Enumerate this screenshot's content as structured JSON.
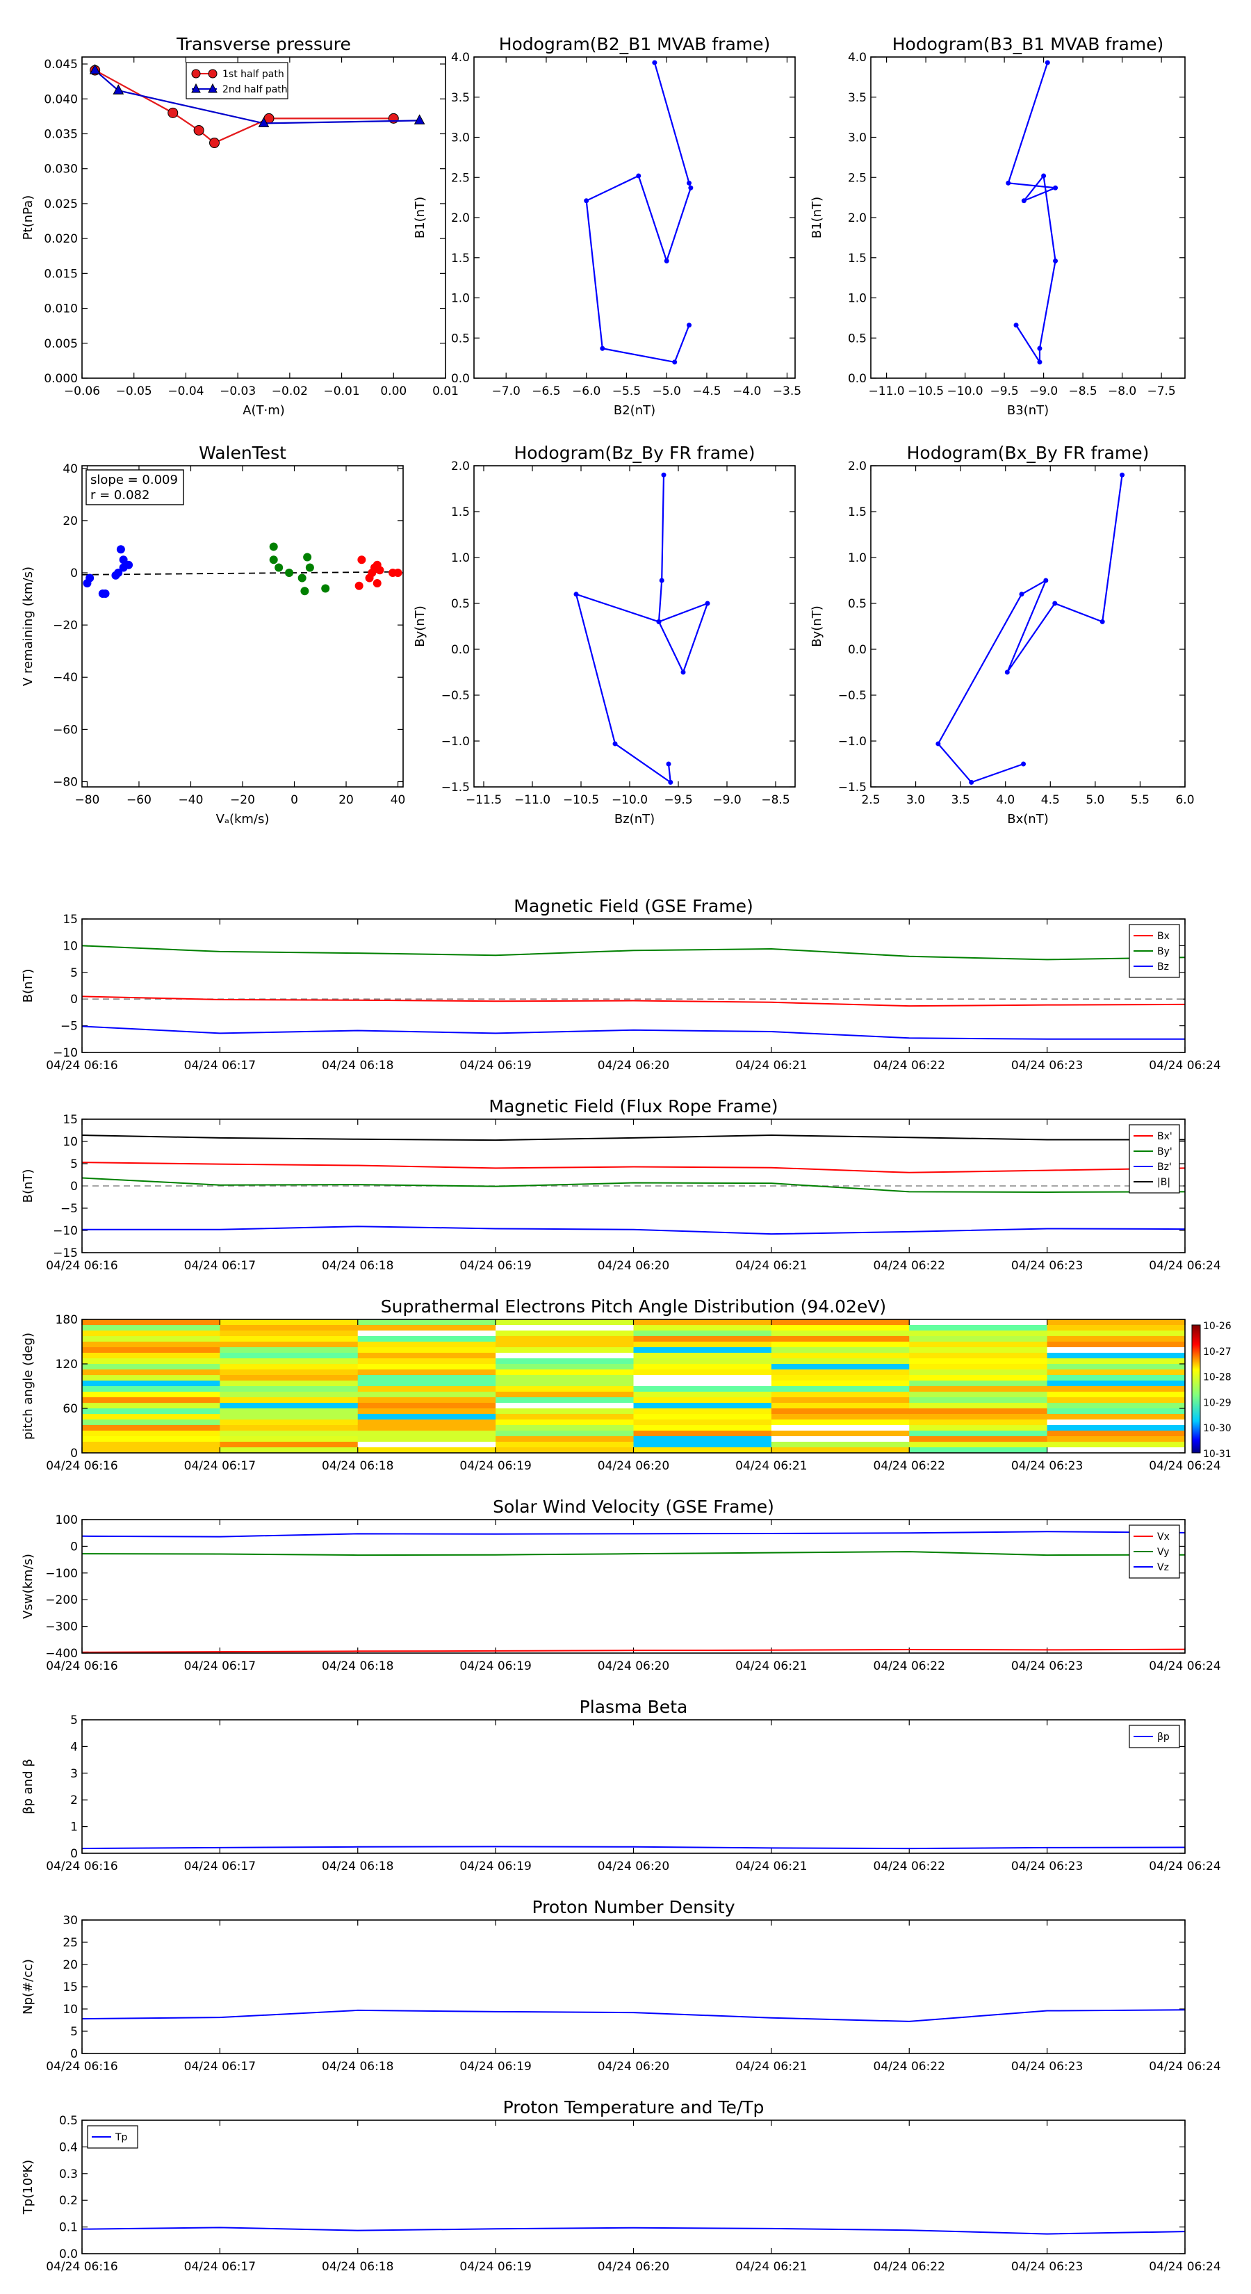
{
  "chart_data": [
    {
      "id": "transverse_pressure",
      "type": "line",
      "title": "Transverse pressure",
      "xlabel": "A(T·m)",
      "ylabel": "Pt(nPa)",
      "xlim": [
        -0.06,
        0.01
      ],
      "ylim": [
        0,
        0.046
      ],
      "xticks": [
        "−0.06",
        "−0.05",
        "−0.04",
        "−0.03",
        "−0.02",
        "−0.01",
        "0.00",
        "0.01"
      ],
      "yticks": [
        "0.000",
        "0.005",
        "0.010",
        "0.015",
        "0.020",
        "0.025",
        "0.030",
        "0.035",
        "0.040",
        "0.045"
      ],
      "legend": "top-center",
      "series": [
        {
          "name": "1st half path",
          "color": "#e41a1c",
          "marker": "circle",
          "x": [
            -0.0575,
            -0.0425,
            -0.0375,
            -0.0345,
            -0.024,
            0.0
          ],
          "y": [
            0.0441,
            0.038,
            0.0355,
            0.0337,
            0.0372,
            0.0372
          ]
        },
        {
          "name": "2nd half path",
          "color": "#0000cc",
          "marker": "triangle",
          "x": [
            -0.0575,
            -0.053,
            -0.025,
            0.005
          ],
          "y": [
            0.0441,
            0.0412,
            0.0365,
            0.0369
          ]
        }
      ]
    },
    {
      "id": "hodo_b2b1",
      "type": "line",
      "title": "Hodogram(B2_B1 MVAB frame)",
      "xlabel": "B2(nT)",
      "ylabel": "B1(nT)",
      "xlim": [
        -7.4,
        -3.4
      ],
      "ylim": [
        0,
        4.0
      ],
      "xticks": [
        "−7.0",
        "−6.5",
        "−6.0",
        "−5.5",
        "−5.0",
        "−4.5",
        "−4.0",
        "−3.5"
      ],
      "yticks": [
        "0.0",
        "0.5",
        "1.0",
        "1.5",
        "2.0",
        "2.5",
        "3.0",
        "3.5",
        "4.0"
      ],
      "series": [
        {
          "color": "#0000ff",
          "x": [
            -5.15,
            -4.72,
            -4.7,
            -5.0,
            -5.35,
            -6.0,
            -5.8,
            -4.9,
            -4.72
          ],
          "y": [
            3.93,
            2.43,
            2.37,
            1.46,
            2.52,
            2.21,
            0.37,
            0.2,
            0.66
          ]
        }
      ]
    },
    {
      "id": "hodo_b3b1",
      "type": "line",
      "title": "Hodogram(B3_B1 MVAB frame)",
      "xlabel": "B3(nT)",
      "ylabel": "B1(nT)",
      "xlim": [
        -11.2,
        -7.2
      ],
      "ylim": [
        0,
        4.0
      ],
      "xticks": [
        "−11.0",
        "−10.5",
        "−10.0",
        "−9.5",
        "−9.0",
        "−8.5",
        "−8.0",
        "−7.5"
      ],
      "yticks": [
        "0.0",
        "0.5",
        "1.0",
        "1.5",
        "2.0",
        "2.5",
        "3.0",
        "3.5",
        "4.0"
      ],
      "series": [
        {
          "color": "#0000ff",
          "x": [
            -8.95,
            -9.45,
            -8.85,
            -9.25,
            -9.0,
            -8.85,
            -9.05,
            -9.05,
            -9.35
          ],
          "y": [
            3.93,
            2.43,
            2.37,
            2.21,
            2.52,
            1.46,
            0.37,
            0.2,
            0.66
          ]
        }
      ]
    },
    {
      "id": "walen",
      "type": "scatter",
      "title": "WalenTest",
      "xlabel": "Vₐ(km/s)",
      "ylabel": "V remaining (km/s)",
      "xlim": [
        -82,
        42
      ],
      "ylim": [
        -82,
        41
      ],
      "xticks": [
        "−80",
        "−60",
        "−40",
        "−20",
        "0",
        "20",
        "40"
      ],
      "yticks": [
        "−80",
        "−60",
        "−40",
        "−20",
        "0",
        "20",
        "40"
      ],
      "annotation": [
        "slope = 0.009",
        "r = 0.082"
      ],
      "fit_line": {
        "slope": 0.009,
        "intercept": 0.0
      },
      "series": [
        {
          "color": "#0000ff",
          "x": [
            -80,
            -79,
            -74,
            -73,
            -68,
            -67,
            -66,
            -66,
            -64,
            -69
          ],
          "y": [
            -4,
            -2,
            -8,
            -8,
            0,
            9,
            5,
            2,
            3,
            -1
          ]
        },
        {
          "color": "#008000",
          "x": [
            -8,
            -8,
            -6,
            -2,
            4,
            5,
            3,
            6,
            12
          ],
          "y": [
            5,
            10,
            2,
            0,
            -7,
            6,
            -2,
            2,
            -6
          ]
        },
        {
          "color": "#ff0000",
          "x": [
            26,
            25,
            29,
            30,
            31,
            32,
            32,
            33,
            38,
            40
          ],
          "y": [
            5,
            -5,
            -2,
            0,
            2,
            3,
            -4,
            1,
            0,
            0
          ]
        }
      ]
    },
    {
      "id": "hodo_bzby",
      "type": "line",
      "title": "Hodogram(Bz_By FR frame)",
      "xlabel": "Bz(nT)",
      "ylabel": "By(nT)",
      "xlim": [
        -11.6,
        -8.3
      ],
      "ylim": [
        -1.5,
        2.0
      ],
      "xticks": [
        "−11.5",
        "−11.0",
        "−10.5",
        "−10.0",
        "−9.5",
        "−9.0",
        "−8.5"
      ],
      "yticks": [
        "−1.5",
        "−1.0",
        "−0.5",
        "0.0",
        "0.5",
        "1.0",
        "1.5",
        "2.0"
      ],
      "series": [
        {
          "color": "#0000ff",
          "x": [
            -9.65,
            -9.67,
            -9.7,
            -9.45,
            -9.2,
            -9.7,
            -10.55,
            -10.15,
            -9.58,
            -9.6
          ],
          "y": [
            1.9,
            0.75,
            0.3,
            -0.25,
            0.5,
            0.3,
            0.6,
            -1.03,
            -1.45,
            -1.25
          ]
        }
      ]
    },
    {
      "id": "hodo_bxby",
      "type": "line",
      "title": "Hodogram(Bx_By FR frame)",
      "xlabel": "Bx(nT)",
      "ylabel": "By(nT)",
      "xlim": [
        2.5,
        6.0
      ],
      "ylim": [
        -1.5,
        2.0
      ],
      "xticks": [
        "2.5",
        "3.0",
        "3.5",
        "4.0",
        "4.5",
        "5.0",
        "5.5",
        "6.0"
      ],
      "yticks": [
        "−1.5",
        "−1.0",
        "−0.5",
        "0.0",
        "0.5",
        "1.0",
        "1.5",
        "2.0"
      ],
      "series": [
        {
          "color": "#0000ff",
          "x": [
            5.3,
            5.08,
            4.55,
            4.02,
            4.45,
            4.18,
            3.25,
            3.62,
            4.2
          ],
          "y": [
            1.9,
            0.3,
            0.5,
            -0.25,
            0.75,
            0.6,
            -1.03,
            -1.45,
            -1.25
          ]
        }
      ]
    },
    {
      "id": "mag_gse",
      "type": "line",
      "title": "Magnetic Field (GSE Frame)",
      "xlabel": "",
      "ylabel": "B(nT)",
      "ylim": [
        -10,
        15
      ],
      "yticks": [
        "−10",
        "−5",
        "0",
        "5",
        "10",
        "15"
      ],
      "zero_line": true,
      "legend": "top-right",
      "series": [
        {
          "name": "Bx",
          "color": "#ff0000",
          "values": [
            0.5,
            -0.1,
            -0.2,
            -0.4,
            -0.3,
            -0.6,
            -1.3,
            -1.1,
            -1.0
          ]
        },
        {
          "name": "By",
          "color": "#008000",
          "values": [
            10.0,
            8.9,
            8.6,
            8.2,
            9.1,
            9.4,
            8.0,
            7.4,
            7.8
          ]
        },
        {
          "name": "Bz",
          "color": "#0000ff",
          "values": [
            -5.1,
            -6.4,
            -5.9,
            -6.4,
            -5.8,
            -6.1,
            -7.3,
            -7.5,
            -7.5
          ]
        }
      ]
    },
    {
      "id": "mag_fr",
      "type": "line",
      "title": "Magnetic Field (Flux Rope Frame)",
      "xlabel": "",
      "ylabel": "B(nT)",
      "ylim": [
        -15,
        15
      ],
      "yticks": [
        "−15",
        "−10",
        "−5",
        "0",
        "5",
        "10",
        "15"
      ],
      "zero_line": true,
      "legend": "top-right",
      "series": [
        {
          "name": "Bx'",
          "color": "#ff0000",
          "values": [
            5.3,
            4.9,
            4.6,
            4.0,
            4.3,
            4.1,
            3.0,
            3.5,
            4.0
          ]
        },
        {
          "name": "By'",
          "color": "#008000",
          "values": [
            1.8,
            0.2,
            0.3,
            -0.1,
            0.7,
            0.6,
            -1.3,
            -1.4,
            -1.3
          ]
        },
        {
          "name": "Bz'",
          "color": "#0000ff",
          "values": [
            -9.8,
            -9.8,
            -9.1,
            -9.6,
            -9.8,
            -10.8,
            -10.3,
            -9.6,
            -9.7
          ]
        },
        {
          "name": "|B|",
          "color": "#000000",
          "values": [
            11.4,
            10.8,
            10.5,
            10.3,
            10.8,
            11.4,
            10.9,
            10.4,
            10.4
          ]
        }
      ]
    },
    {
      "id": "pad",
      "type": "heatmap",
      "title": "Suprathermal Electrons Pitch Angle Distribution (94.02eV)",
      "xlabel": "",
      "ylabel": "pitch angle (deg)",
      "ylim": [
        0,
        180
      ],
      "yticks": [
        "0",
        "60",
        "120",
        "180"
      ],
      "colorbar_ticks": [
        "10-26",
        "10-27",
        "10-28",
        "10-29",
        "10-30",
        "10-31"
      ]
    },
    {
      "id": "vsw",
      "type": "line",
      "title": "Solar Wind Velocity (GSE Frame)",
      "xlabel": "",
      "ylabel": "Vsw(km/s)",
      "ylim": [
        -400,
        100
      ],
      "yticks": [
        "−400",
        "−300",
        "−200",
        "−100",
        "0",
        "100"
      ],
      "legend": "top-right",
      "series": [
        {
          "name": "Vx",
          "color": "#ff0000",
          "values": [
            -397,
            -395,
            -393,
            -392,
            -390,
            -389,
            -387,
            -388,
            -386
          ]
        },
        {
          "name": "Vy",
          "color": "#008000",
          "values": [
            -28,
            -29,
            -33,
            -32,
            -28,
            -24,
            -20,
            -33,
            -32
          ]
        },
        {
          "name": "Vz",
          "color": "#0000ff",
          "values": [
            38,
            36,
            47,
            46,
            47,
            48,
            50,
            55,
            51
          ]
        }
      ]
    },
    {
      "id": "beta",
      "type": "line",
      "title": "Plasma Beta",
      "xlabel": "",
      "ylabel": "βp and β",
      "ylim": [
        0,
        5
      ],
      "yticks": [
        "0",
        "1",
        "2",
        "3",
        "4",
        "5"
      ],
      "legend": "top-right",
      "series": [
        {
          "name": "βp",
          "color": "#0000ff",
          "values": [
            0.18,
            0.21,
            0.24,
            0.25,
            0.24,
            0.2,
            0.18,
            0.21,
            0.22
          ]
        }
      ]
    },
    {
      "id": "np",
      "type": "line",
      "title": "Proton Number Density",
      "xlabel": "",
      "ylabel": "Np(#/cc)",
      "ylim": [
        0,
        30
      ],
      "yticks": [
        "0",
        "5",
        "10",
        "15",
        "20",
        "25",
        "30"
      ],
      "series": [
        {
          "color": "#0000ff",
          "values": [
            7.8,
            8.1,
            9.7,
            9.4,
            9.2,
            8.0,
            7.2,
            9.6,
            9.8
          ]
        }
      ]
    },
    {
      "id": "tp",
      "type": "line",
      "title": "Proton Temperature and Te/Tp",
      "xlabel": "",
      "ylabel": "Tp(10⁶K)",
      "ylim": [
        0,
        0.5
      ],
      "yticks": [
        "0.0",
        "0.1",
        "0.2",
        "0.3",
        "0.4",
        "0.5"
      ],
      "legend": "top-left",
      "series": [
        {
          "name": "Tp",
          "color": "#0000ff",
          "values": [
            0.092,
            0.098,
            0.087,
            0.093,
            0.097,
            0.094,
            0.088,
            0.074,
            0.083
          ]
        }
      ]
    }
  ],
  "time_axis": {
    "labels": [
      "04/24 06:16",
      "04/24 06:17",
      "04/24 06:18",
      "04/24 06:19",
      "04/24 06:20",
      "04/24 06:21",
      "04/24 06:22",
      "04/24 06:23",
      "04/24 06:24"
    ]
  }
}
